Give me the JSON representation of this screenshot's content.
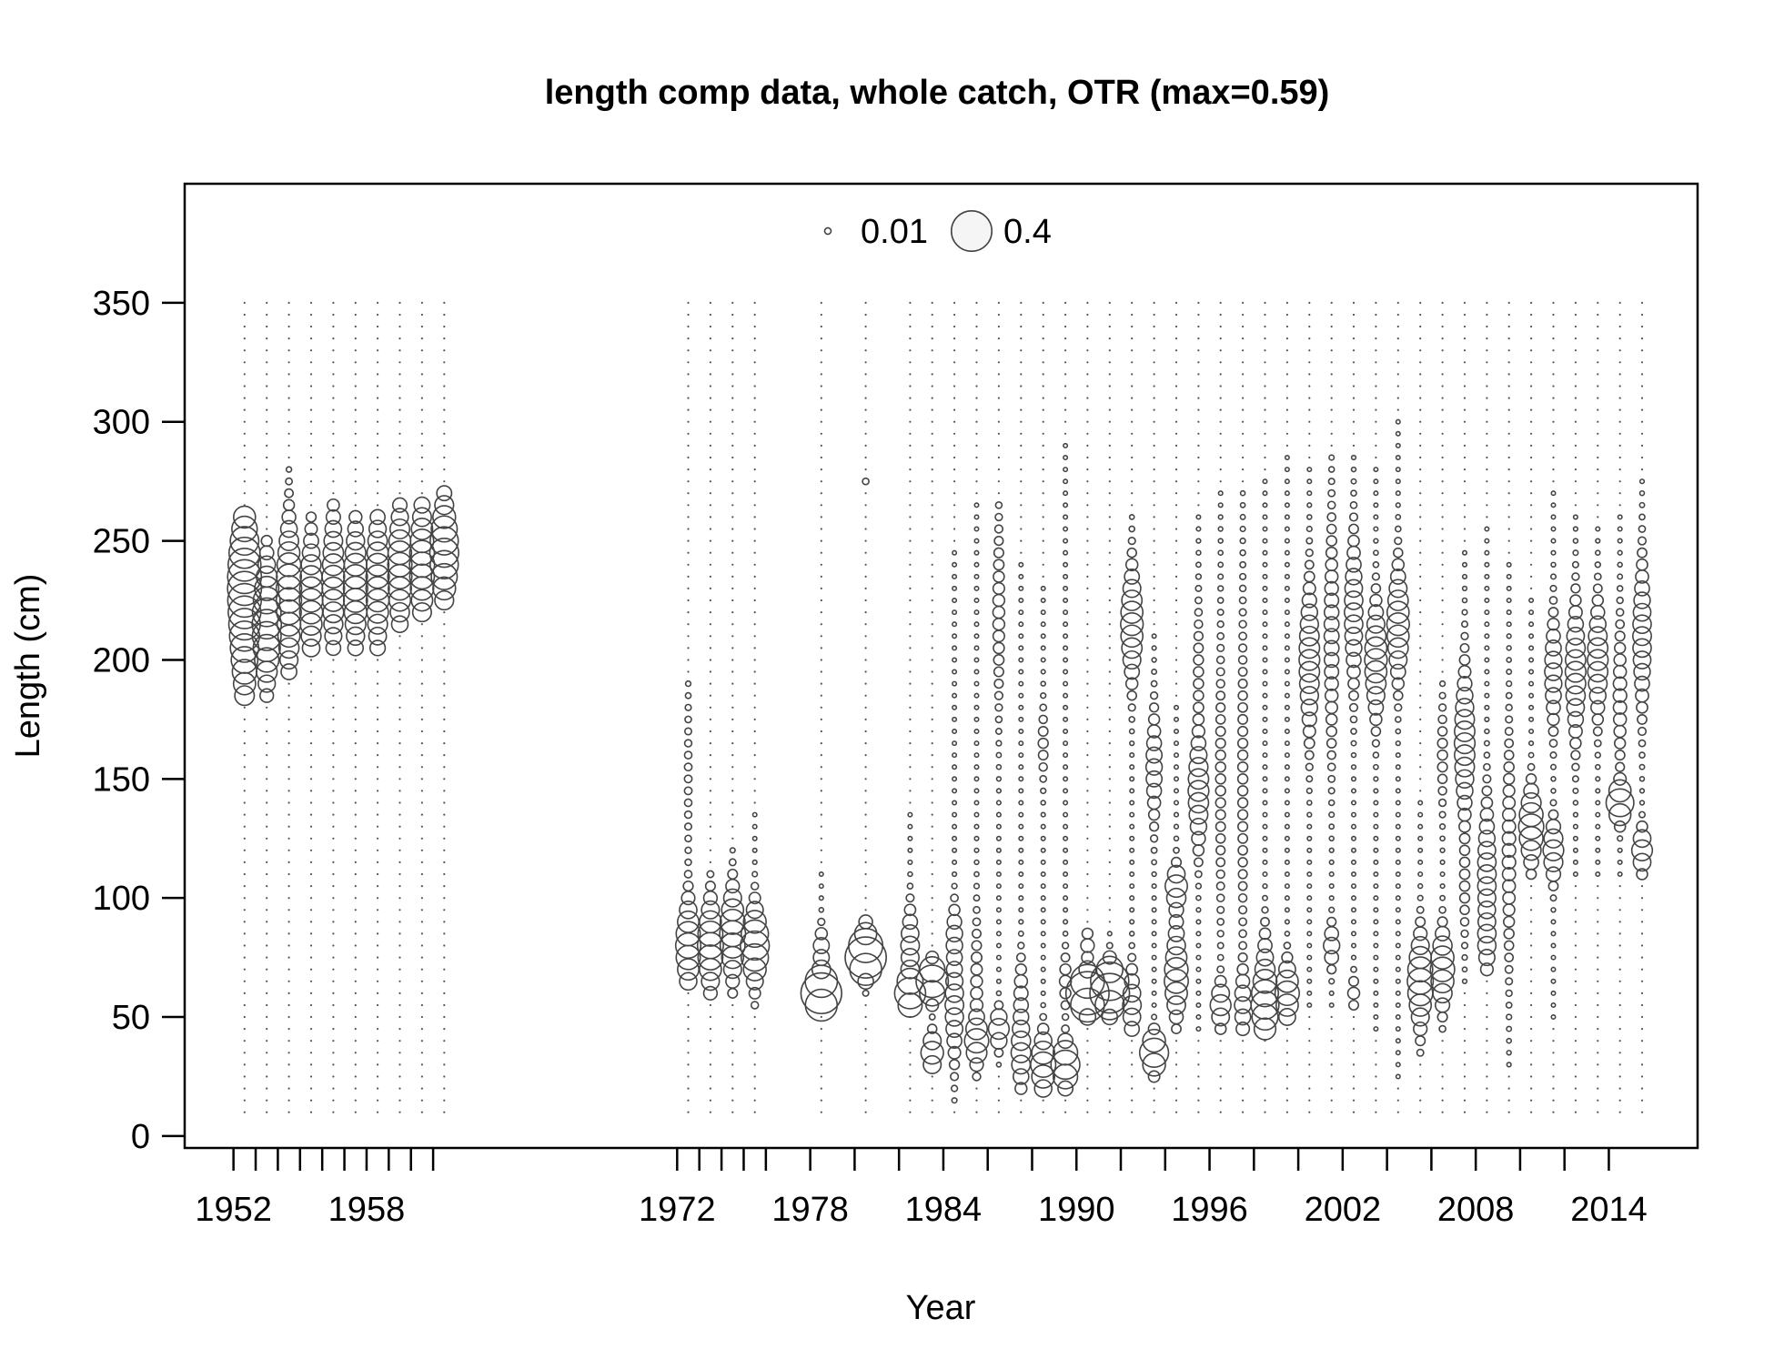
{
  "chart_data": {
    "type": "scatter",
    "subtype": "bubble",
    "title": "length comp data, whole catch, OTR (max=0.59)",
    "xlabel": "Year",
    "ylabel": "Length (cm)",
    "xlim": [
      1949.8,
      2018.0
    ],
    "ylim": [
      -5,
      400
    ],
    "xticks": [
      1952,
      1953,
      1954,
      1955,
      1956,
      1957,
      1958,
      1959,
      1960,
      1961,
      1972,
      1973,
      1974,
      1975,
      1976,
      1978,
      1980,
      1982,
      1984,
      1986,
      1988,
      1990,
      1992,
      1994,
      1996,
      1998,
      2000,
      2002,
      2004,
      2006,
      2008,
      2010,
      2012,
      2014
    ],
    "xtick_labels": [
      {
        "year": 1952,
        "label": "1952"
      },
      {
        "year": 1958,
        "label": "1958"
      },
      {
        "year": 1972,
        "label": "1972"
      },
      {
        "year": 1978,
        "label": "1978"
      },
      {
        "year": 1984,
        "label": "1984"
      },
      {
        "year": 1990,
        "label": "1990"
      },
      {
        "year": 1996,
        "label": "1996"
      },
      {
        "year": 2002,
        "label": "2002"
      },
      {
        "year": 2008,
        "label": "2008"
      },
      {
        "year": 2014,
        "label": "2014"
      }
    ],
    "yticks": [
      0,
      50,
      100,
      150,
      200,
      250,
      300,
      350
    ],
    "length_bins": {
      "min": 10,
      "max": 350,
      "step": 5
    },
    "max_proportion": 0.59,
    "legend": {
      "position": "top-center",
      "entries": [
        {
          "value": 0.01,
          "label": "0.01"
        },
        {
          "value": 0.4,
          "label": "0.4"
        }
      ]
    },
    "grid": false,
    "series": [
      {
        "year": 1952.5,
        "peaks": [
          [
            200,
            0.1,
            18
          ],
          [
            240,
            0.16,
            18
          ],
          [
            225,
            0.12,
            20
          ]
        ],
        "range": [
          185,
          260
        ]
      },
      {
        "year": 1953.5,
        "peaks": [
          [
            210,
            0.15,
            15
          ],
          [
            225,
            0.08,
            15
          ]
        ],
        "range": [
          185,
          250
        ]
      },
      {
        "year": 1954.5,
        "peaks": [
          [
            220,
            0.12,
            20
          ],
          [
            240,
            0.06,
            15
          ]
        ],
        "range": [
          195,
          280
        ]
      },
      {
        "year": 1955.5,
        "peaks": [
          [
            225,
            0.13,
            18
          ]
        ],
        "range": [
          205,
          260
        ]
      },
      {
        "year": 1956.5,
        "peaks": [
          [
            232,
            0.12,
            20
          ]
        ],
        "range": [
          205,
          265
        ]
      },
      {
        "year": 1957.5,
        "peaks": [
          [
            230,
            0.14,
            18
          ]
        ],
        "range": [
          205,
          260
        ]
      },
      {
        "year": 1958.5,
        "peaks": [
          [
            232,
            0.13,
            20
          ]
        ],
        "range": [
          205,
          260
        ]
      },
      {
        "year": 1959.5,
        "peaks": [
          [
            238,
            0.14,
            18
          ]
        ],
        "range": [
          215,
          265
        ]
      },
      {
        "year": 1960.5,
        "peaks": [
          [
            240,
            0.15,
            18
          ]
        ],
        "range": [
          220,
          265
        ]
      },
      {
        "year": 1961.5,
        "peaks": [
          [
            245,
            0.2,
            15
          ]
        ],
        "range": [
          225,
          270
        ]
      },
      {
        "year": 1972.5,
        "peaks": [
          [
            80,
            0.15,
            12
          ],
          [
            150,
            0.01,
            25
          ]
        ],
        "range": [
          65,
          190
        ]
      },
      {
        "year": 1973.5,
        "peaks": [
          [
            80,
            0.16,
            12
          ]
        ],
        "range": [
          60,
          110
        ]
      },
      {
        "year": 1974.5,
        "peaks": [
          [
            85,
            0.16,
            12
          ]
        ],
        "range": [
          60,
          120
        ]
      },
      {
        "year": 1975.5,
        "peaks": [
          [
            80,
            0.2,
            10
          ]
        ],
        "range": [
          55,
          135
        ]
      },
      {
        "year": 1978.5,
        "peaks": [
          [
            60,
            0.4,
            5
          ],
          [
            78,
            0.06,
            6
          ]
        ],
        "range": [
          55,
          110
        ]
      },
      {
        "year": 1980.5,
        "peaks": [
          [
            75,
            0.4,
            5
          ],
          [
            85,
            0.06,
            5
          ]
        ],
        "range": [
          60,
          90
        ],
        "extra": [
          [
            275,
            0.01
          ]
        ]
      },
      {
        "year": 1982.5,
        "peaks": [
          [
            60,
            0.22,
            5
          ],
          [
            80,
            0.08,
            10
          ]
        ],
        "range": [
          55,
          135
        ]
      },
      {
        "year": 1983.5,
        "peaks": [
          [
            35,
            0.12,
            5
          ],
          [
            65,
            0.25,
            5
          ]
        ],
        "range": [
          30,
          75
        ]
      },
      {
        "year": 1984.5,
        "peaks": [
          [
            55,
            0.08,
            15
          ],
          [
            85,
            0.05,
            8
          ]
        ],
        "range": [
          15,
          245
        ]
      },
      {
        "year": 1985.5,
        "peaks": [
          [
            40,
            0.12,
            6
          ],
          [
            60,
            0.03,
            20
          ]
        ],
        "range": [
          25,
          265
        ]
      },
      {
        "year": 1986.5,
        "peaks": [
          [
            45,
            0.1,
            5
          ],
          [
            220,
            0.03,
            25
          ]
        ],
        "range": [
          30,
          265
        ]
      },
      {
        "year": 1987.5,
        "peaks": [
          [
            35,
            0.09,
            10
          ],
          [
            60,
            0.04,
            10
          ]
        ],
        "range": [
          20,
          240
        ]
      },
      {
        "year": 1988.5,
        "peaks": [
          [
            30,
            0.15,
            8
          ],
          [
            165,
            0.02,
            10
          ]
        ],
        "range": [
          20,
          230
        ]
      },
      {
        "year": 1989.5,
        "peaks": [
          [
            30,
            0.2,
            6
          ],
          [
            65,
            0.03,
            8
          ]
        ],
        "range": [
          20,
          290
        ]
      },
      {
        "year": 1990.5,
        "peaks": [
          [
            60,
            0.45,
            5
          ],
          [
            80,
            0.04,
            5
          ]
        ],
        "range": [
          50,
          85
        ]
      },
      {
        "year": 1991.5,
        "peaks": [
          [
            62,
            0.4,
            6
          ]
        ],
        "range": [
          50,
          85
        ]
      },
      {
        "year": 1992.5,
        "peaks": [
          [
            55,
            0.08,
            10
          ],
          [
            215,
            0.12,
            15
          ]
        ],
        "range": [
          45,
          260
        ]
      },
      {
        "year": 1993.5,
        "peaks": [
          [
            35,
            0.2,
            5
          ],
          [
            155,
            0.06,
            15
          ]
        ],
        "range": [
          25,
          210
        ]
      },
      {
        "year": 1994.5,
        "peaks": [
          [
            65,
            0.12,
            10
          ],
          [
            105,
            0.1,
            5
          ],
          [
            85,
            0.04,
            15
          ]
        ],
        "range": [
          45,
          180
        ]
      },
      {
        "year": 1995.5,
        "peaks": [
          [
            145,
            0.1,
            15
          ],
          [
            195,
            0.02,
            20
          ]
        ],
        "range": [
          45,
          260
        ]
      },
      {
        "year": 1996.5,
        "peaks": [
          [
            55,
            0.1,
            6
          ],
          [
            150,
            0.02,
            40
          ]
        ],
        "range": [
          45,
          270
        ]
      },
      {
        "year": 1997.5,
        "peaks": [
          [
            55,
            0.06,
            10
          ],
          [
            150,
            0.02,
            50
          ]
        ],
        "range": [
          45,
          270
        ]
      },
      {
        "year": 1998.5,
        "peaks": [
          [
            55,
            0.18,
            10
          ],
          [
            75,
            0.04,
            10
          ]
        ],
        "range": [
          45,
          275
        ]
      },
      {
        "year": 1999.5,
        "peaks": [
          [
            60,
            0.14,
            8
          ]
        ],
        "range": [
          50,
          285
        ]
      },
      {
        "year": 2000.5,
        "peaks": [
          [
            200,
            0.1,
            20
          ]
        ],
        "range": [
          55,
          280
        ]
      },
      {
        "year": 2001.5,
        "peaks": [
          [
            80,
            0.06,
            6
          ],
          [
            210,
            0.05,
            30
          ]
        ],
        "range": [
          55,
          285
        ]
      },
      {
        "year": 2002.5,
        "peaks": [
          [
            220,
            0.08,
            20
          ],
          [
            60,
            0.03,
            5
          ]
        ],
        "range": [
          55,
          285
        ]
      },
      {
        "year": 2003.5,
        "peaks": [
          [
            200,
            0.12,
            15
          ]
        ],
        "range": [
          45,
          280
        ]
      },
      {
        "year": 2004.5,
        "peaks": [
          [
            215,
            0.12,
            15
          ]
        ],
        "range": [
          25,
          300
        ]
      },
      {
        "year": 2005.5,
        "peaks": [
          [
            65,
            0.16,
            12
          ]
        ],
        "range": [
          35,
          140
        ]
      },
      {
        "year": 2006.5,
        "peaks": [
          [
            70,
            0.14,
            10
          ],
          [
            160,
            0.02,
            15
          ]
        ],
        "range": [
          45,
          190
        ]
      },
      {
        "year": 2007.5,
        "peaks": [
          [
            165,
            0.1,
            20
          ],
          [
            105,
            0.02,
            15
          ]
        ],
        "range": [
          65,
          245
        ]
      },
      {
        "year": 2008.5,
        "peaks": [
          [
            110,
            0.08,
            20
          ],
          [
            80,
            0.05,
            8
          ]
        ],
        "range": [
          70,
          255
        ]
      },
      {
        "year": 2009.5,
        "peaks": [
          [
            120,
            0.04,
            30
          ]
        ],
        "range": [
          30,
          240
        ]
      },
      {
        "year": 2010.5,
        "peaks": [
          [
            130,
            0.15,
            10
          ]
        ],
        "range": [
          110,
          225
        ]
      },
      {
        "year": 2011.5,
        "peaks": [
          [
            120,
            0.1,
            8
          ],
          [
            195,
            0.07,
            15
          ]
        ],
        "range": [
          50,
          270
        ]
      },
      {
        "year": 2012.5,
        "peaks": [
          [
            195,
            0.1,
            18
          ]
        ],
        "range": [
          110,
          260
        ]
      },
      {
        "year": 2013.5,
        "peaks": [
          [
            200,
            0.1,
            15
          ]
        ],
        "range": [
          110,
          255
        ]
      },
      {
        "year": 2014.5,
        "peaks": [
          [
            140,
            0.18,
            5
          ],
          [
            185,
            0.04,
            20
          ]
        ],
        "range": [
          110,
          260
        ]
      },
      {
        "year": 2015.5,
        "peaks": [
          [
            120,
            0.1,
            6
          ],
          [
            210,
            0.08,
            20
          ]
        ],
        "range": [
          110,
          275
        ]
      }
    ]
  }
}
